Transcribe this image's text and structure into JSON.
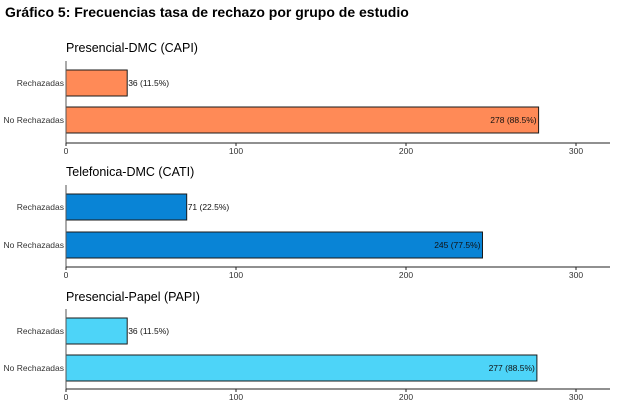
{
  "figure": {
    "title": "Gráfico 5: Frecuencias tasa de rechazo por grupo de estudio"
  },
  "chart_data": [
    {
      "type": "bar",
      "orientation": "horizontal",
      "title": "Presencial-DMC (CAPI)",
      "categories": [
        "Rechazadas",
        "No Rechazadas"
      ],
      "values": [
        36,
        278
      ],
      "data_labels": [
        "36 (11.5%)",
        "278 (88.5%)"
      ],
      "xlim": [
        0,
        320
      ],
      "xticks": [
        0,
        100,
        200,
        300
      ],
      "xlabel": "",
      "ylabel": "",
      "color": "#FF8A57",
      "grid": false
    },
    {
      "type": "bar",
      "orientation": "horizontal",
      "title": "Telefonica-DMC (CATI)",
      "categories": [
        "Rechazadas",
        "No Rechazadas"
      ],
      "values": [
        71,
        245
      ],
      "data_labels": [
        "71 (22.5%)",
        "245 (77.5%)"
      ],
      "xlim": [
        0,
        320
      ],
      "xticks": [
        0,
        100,
        200,
        300
      ],
      "xlabel": "",
      "ylabel": "",
      "color": "#0984D6",
      "grid": false
    },
    {
      "type": "bar",
      "orientation": "horizontal",
      "title": "Presencial-Papel (PAPI)",
      "categories": [
        "Rechazadas",
        "No Rechazadas"
      ],
      "values": [
        36,
        277
      ],
      "data_labels": [
        "36 (11.5%)",
        "277 (88.5%)"
      ],
      "xlim": [
        0,
        320
      ],
      "xticks": [
        0,
        100,
        200,
        300
      ],
      "xlabel": "",
      "ylabel": "",
      "color": "#4DD4F8",
      "grid": false
    }
  ]
}
